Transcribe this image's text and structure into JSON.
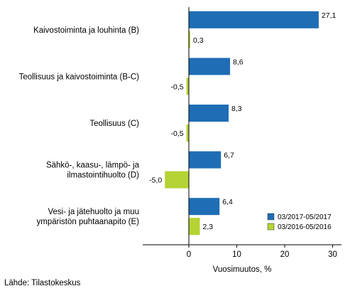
{
  "chart_data": {
    "type": "bar",
    "orientation": "horizontal",
    "categories": [
      [
        "Kaivostoiminta ja louhinta (B)"
      ],
      [
        "Teollisuus ja kaivostoiminta (B-C)"
      ],
      [
        "Teollisuus (C)"
      ],
      [
        "Sähkö-, kaasu-, lämpö- ja",
        "ilmastointihuolto (D)"
      ],
      [
        "Vesi- ja jätehuolto ja muu",
        "ympäristön puhtaanapito (E)"
      ]
    ],
    "series": [
      {
        "name": "03/2017-05/2017",
        "color": "#1f6db5",
        "values": [
          27.1,
          8.6,
          8.3,
          6.7,
          6.4
        ],
        "labels": [
          "27,1",
          "8,6",
          "8,3",
          "6,7",
          "6,4"
        ]
      },
      {
        "name": "03/2016-05/2016",
        "color": "#b5d334",
        "values": [
          0.3,
          -0.5,
          -0.5,
          -5.0,
          2.3
        ],
        "labels": [
          "0,3",
          "-0,5",
          "-0,5",
          "-5,0",
          "2,3"
        ]
      }
    ],
    "xlabel": "Vuosimuutos, %",
    "xlim": [
      -10,
      31
    ],
    "xticks": [
      0,
      10,
      20,
      30
    ],
    "xtick_labels": [
      "0",
      "10",
      "20",
      "30"
    ],
    "grid": false,
    "legend_position": "bottom-right"
  },
  "source": "Lähde: Tilastokeskus"
}
